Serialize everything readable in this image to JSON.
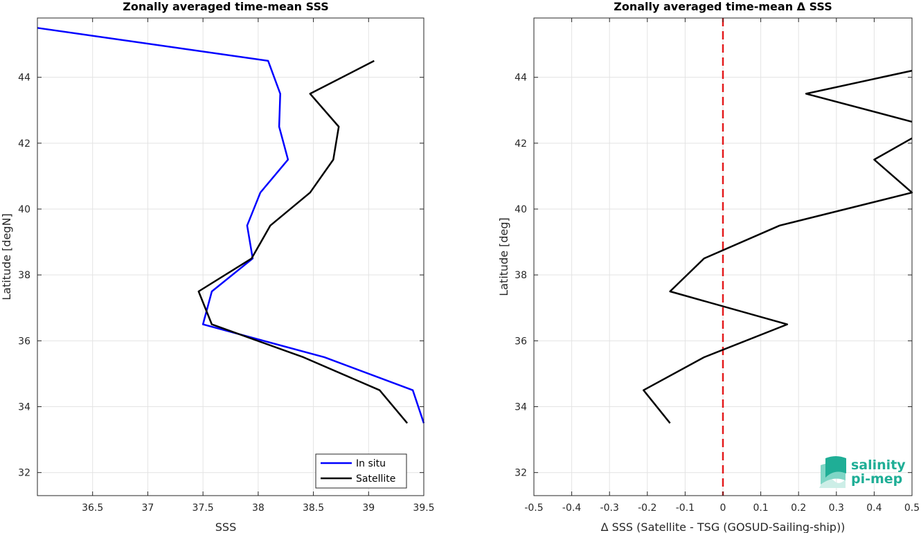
{
  "chart_data": [
    {
      "type": "line",
      "title": "Zonally averaged time-mean SSS",
      "xlabel": "SSS",
      "ylabel": "Latitude [degN]",
      "xlim": [
        36.0,
        39.5
      ],
      "ylim": [
        31.3,
        45.8
      ],
      "xticks": [
        36.5,
        37,
        37.5,
        38,
        38.5,
        39,
        39.5
      ],
      "xtick_labels": [
        "36.5",
        "37",
        "37.5",
        "38",
        "38.5",
        "39",
        "39.5"
      ],
      "yticks": [
        32,
        34,
        36,
        38,
        40,
        42,
        44
      ],
      "ytick_labels": [
        "32",
        "34",
        "36",
        "38",
        "40",
        "42",
        "44"
      ],
      "grid": true,
      "legend": "bottom-right",
      "series": [
        {
          "name": "In situ",
          "color": "#0000ff",
          "x": [
            36.0,
            38.09,
            38.2,
            38.19,
            38.27,
            38.02,
            37.9,
            37.95,
            37.58,
            37.5,
            38.6,
            39.4,
            39.5
          ],
          "y": [
            45.5,
            44.5,
            43.5,
            42.5,
            41.5,
            40.5,
            39.5,
            38.5,
            37.5,
            36.5,
            35.5,
            34.5,
            33.5
          ]
        },
        {
          "name": "Satellite",
          "color": "#000000",
          "x": [
            39.05,
            38.47,
            38.73,
            38.68,
            38.47,
            38.11,
            37.94,
            37.46,
            37.58,
            38.41,
            39.1,
            39.35
          ],
          "y": [
            44.5,
            43.5,
            42.5,
            41.5,
            40.5,
            39.5,
            38.5,
            37.5,
            36.5,
            35.5,
            34.5,
            33.5
          ]
        }
      ]
    },
    {
      "type": "line",
      "title": "Zonally averaged time-mean Δ SSS",
      "xlabel": "Δ SSS (Satellite - TSG (GOSUD-Sailing-ship))",
      "ylabel": "Latitude [deg]",
      "xlim": [
        -0.5,
        0.5
      ],
      "ylim": [
        31.3,
        45.8
      ],
      "xticks": [
        -0.5,
        -0.4,
        -0.3,
        -0.2,
        -0.1,
        0,
        0.1,
        0.2,
        0.3,
        0.4,
        0.5
      ],
      "xtick_labels": [
        "-0.5",
        "-0.4",
        "-0.3",
        "-0.2",
        "-0.1",
        "0",
        "0.1",
        "0.2",
        "0.3",
        "0.4",
        "0.5"
      ],
      "yticks": [
        32,
        34,
        36,
        38,
        40,
        42,
        44
      ],
      "ytick_labels": [
        "32",
        "34",
        "36",
        "38",
        "40",
        "42",
        "44"
      ],
      "grid": true,
      "reference_line": {
        "x": 0,
        "color": "#e41a1c",
        "style": "dashed"
      },
      "series": [
        {
          "color": "#000000",
          "x": [
            0.5,
            0.22,
            0.5,
            null,
            0.5,
            0.4,
            0.5,
            0.15,
            -0.05,
            -0.14,
            0.17,
            -0.05,
            -0.21,
            -0.14
          ],
          "y": [
            44.2,
            43.5,
            42.65,
            null,
            42.15,
            41.5,
            40.5,
            39.5,
            38.5,
            37.5,
            36.5,
            35.5,
            34.5,
            33.5
          ]
        }
      ]
    }
  ],
  "logo": {
    "line1": "salinity",
    "line2": "pi-mep",
    "colors": [
      "#1fae96",
      "#7fd6c6",
      "#cdeee7"
    ]
  }
}
